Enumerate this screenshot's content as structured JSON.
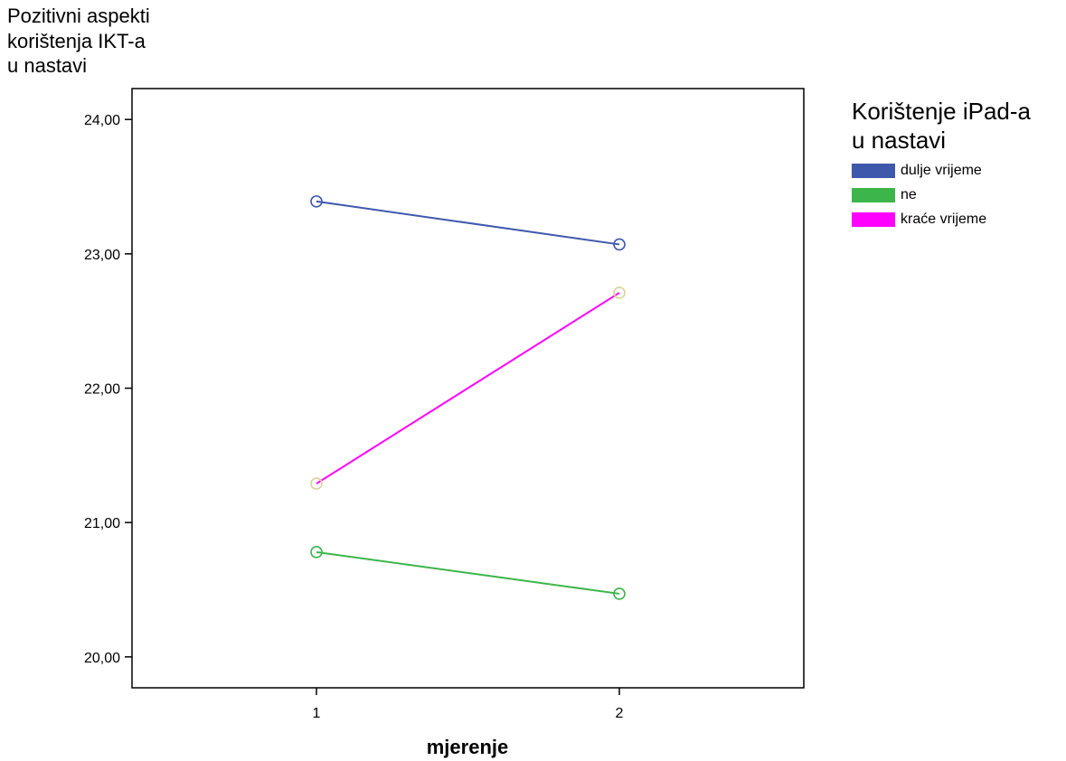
{
  "chart_data": {
    "type": "line",
    "ylabel_lines": [
      "Pozitivni aspekti",
      "korištenja IKT-a",
      "u nastavi"
    ],
    "xlabel": "mjerenje",
    "categories": [
      "1",
      "2"
    ],
    "ylim": [
      19.77,
      24.23
    ],
    "yticks": [
      20,
      21,
      22,
      23,
      24
    ],
    "ytick_labels": [
      "20,00",
      "21,00",
      "22,00",
      "23,00",
      "24,00"
    ],
    "grid": false,
    "legend": {
      "title_lines": [
        "Korištenje iPad-a",
        "u nastavi"
      ],
      "placement": "right",
      "entries": [
        "dulje vrijeme",
        "ne",
        "kraće vrijeme"
      ]
    },
    "series": [
      {
        "name": "dulje vrijeme",
        "values": [
          23.39,
          23.07
        ],
        "color": "#3e58ac",
        "marker_color": "#3e58ac"
      },
      {
        "name": "ne",
        "values": [
          20.78,
          20.47
        ],
        "color": "#3cb54a",
        "marker_color": "#3cb54a"
      },
      {
        "name": "kraće vrijeme",
        "values": [
          21.29,
          22.71
        ],
        "color": "#ff00ff",
        "marker_color": "#d8d49a"
      }
    ]
  }
}
